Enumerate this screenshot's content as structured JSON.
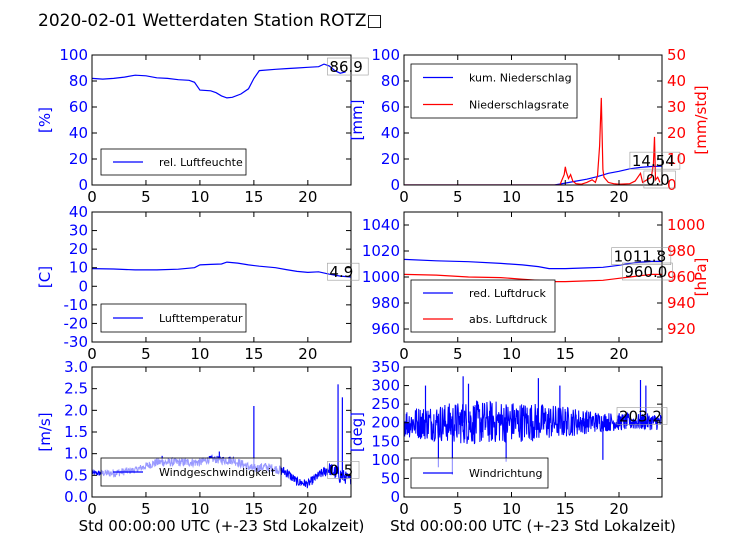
{
  "title": "2020-02-01 Wetterdaten Station ROTZ□",
  "colors": {
    "blue": "#0000ff",
    "red": "#ff0000",
    "black": "#000000"
  },
  "chart_data": [
    {
      "id": "humidity",
      "type": "line",
      "xlim": [
        0,
        24
      ],
      "ylim": [
        0,
        100
      ],
      "xticks": [
        0,
        5,
        10,
        15,
        20
      ],
      "yticks": [
        0,
        20,
        40,
        60,
        80,
        100
      ],
      "ylabel": "[%]",
      "xlabel": "",
      "legend_position": "lower-center",
      "series": [
        {
          "name": "rel. Luftfeuchte",
          "color": "#0000ff",
          "points": [
            [
              0,
              82
            ],
            [
              1,
              81.5
            ],
            [
              2,
              82
            ],
            [
              3,
              83
            ],
            [
              4,
              84.5
            ],
            [
              5,
              84
            ],
            [
              6,
              82.5
            ],
            [
              7,
              82
            ],
            [
              8,
              81
            ],
            [
              9,
              80.5
            ],
            [
              9.5,
              79
            ],
            [
              10,
              73
            ],
            [
              11,
              72.5
            ],
            [
              11.5,
              71
            ],
            [
              12,
              68.5
            ],
            [
              12.5,
              67
            ],
            [
              13,
              67.5
            ],
            [
              13.8,
              70
            ],
            [
              14.5,
              74
            ],
            [
              15,
              82
            ],
            [
              15.5,
              88
            ],
            [
              17,
              89
            ],
            [
              18,
              89.5
            ],
            [
              19,
              90
            ],
            [
              20,
              90.5
            ],
            [
              21,
              91
            ],
            [
              21.5,
              93
            ],
            [
              22,
              91.5
            ],
            [
              22.5,
              88
            ],
            [
              23,
              86
            ],
            [
              23.5,
              87
            ]
          ]
        }
      ],
      "annotations": [
        {
          "text": "86.9",
          "x": 22,
          "y": 86.9
        }
      ]
    },
    {
      "id": "precip",
      "type": "line",
      "xlim": [
        0,
        24
      ],
      "ylim": [
        0,
        100
      ],
      "y2lim": [
        0,
        50
      ],
      "xticks": [
        0,
        5,
        10,
        15,
        20
      ],
      "yticks": [
        0,
        20,
        40,
        60,
        80,
        100
      ],
      "y2ticks": [
        0,
        10,
        20,
        30,
        40,
        50
      ],
      "ylabel": "[mm]",
      "y2label": "[mm/std]",
      "xlabel": "",
      "legend_position": "upper-left",
      "series": [
        {
          "name": "kum. Niederschlag",
          "axis": "left",
          "color": "#0000ff",
          "points": [
            [
              0,
              0
            ],
            [
              14,
              0
            ],
            [
              15,
              1.5
            ],
            [
              16,
              3
            ],
            [
              17,
              4.5
            ],
            [
              18,
              6.5
            ],
            [
              19,
              9
            ],
            [
              20,
              10.5
            ],
            [
              21,
              12.5
            ],
            [
              22,
              13.5
            ],
            [
              23,
              14.2
            ],
            [
              24,
              14.5
            ]
          ]
        },
        {
          "name": "Niederschlagsrate",
          "axis": "right",
          "color": "#ff0000",
          "points": [
            [
              0,
              0
            ],
            [
              14.5,
              0
            ],
            [
              14.7,
              2
            ],
            [
              14.9,
              4
            ],
            [
              15,
              7
            ],
            [
              15.1,
              5
            ],
            [
              15.3,
              2.5
            ],
            [
              15.5,
              4
            ],
            [
              15.7,
              1.5
            ],
            [
              16,
              0.5
            ],
            [
              16.5,
              0.3
            ],
            [
              17,
              1
            ],
            [
              17.5,
              2
            ],
            [
              17.8,
              1
            ],
            [
              18,
              3.5
            ],
            [
              18.2,
              15
            ],
            [
              18.35,
              33.5
            ],
            [
              18.5,
              6
            ],
            [
              18.6,
              3
            ],
            [
              19,
              1
            ],
            [
              19.5,
              0.5
            ],
            [
              20,
              0.3
            ],
            [
              21,
              0.5
            ],
            [
              21.5,
              1.5
            ],
            [
              22,
              4.5
            ],
            [
              22.2,
              1
            ],
            [
              22.6,
              2
            ],
            [
              23,
              3
            ],
            [
              23.2,
              8
            ],
            [
              23.3,
              18.5
            ],
            [
              23.4,
              2
            ],
            [
              23.6,
              3
            ],
            [
              23.8,
              1
            ]
          ]
        }
      ],
      "annotations": [
        {
          "text": "14.54",
          "x": 21.2,
          "y": 14.5
        },
        {
          "text": "0.0",
          "x": 22.5,
          "y": 0.0
        }
      ]
    },
    {
      "id": "temperature",
      "type": "line",
      "xlim": [
        0,
        24
      ],
      "ylim": [
        -30,
        40
      ],
      "xticks": [
        0,
        5,
        10,
        15,
        20
      ],
      "yticks": [
        -30,
        -20,
        -10,
        0,
        10,
        20,
        30,
        40
      ],
      "ylabel": "[C]",
      "xlabel": "",
      "legend_position": "lower-center",
      "series": [
        {
          "name": "Lufttemperatur",
          "color": "#0000ff",
          "points": [
            [
              0,
              9.5
            ],
            [
              2,
              9.3
            ],
            [
              4,
              8.8
            ],
            [
              6,
              8.8
            ],
            [
              8,
              9.2
            ],
            [
              9.5,
              10
            ],
            [
              10,
              11.5
            ],
            [
              11,
              11.8
            ],
            [
              12,
              12
            ],
            [
              12.5,
              13
            ],
            [
              13.5,
              12.5
            ],
            [
              14.5,
              11.5
            ],
            [
              15.5,
              10.8
            ],
            [
              17,
              10
            ],
            [
              18,
              9
            ],
            [
              19,
              8
            ],
            [
              20,
              7.5
            ],
            [
              21,
              7.8
            ],
            [
              22,
              6.5
            ],
            [
              23,
              5.5
            ],
            [
              24,
              5
            ]
          ]
        }
      ],
      "annotations": [
        {
          "text": "4.9",
          "x": 22,
          "y": 4.9
        }
      ]
    },
    {
      "id": "pressure",
      "type": "line",
      "xlim": [
        0,
        24
      ],
      "ylim": [
        950,
        1050
      ],
      "y2lim": [
        910,
        1010
      ],
      "xticks": [
        0,
        5,
        10,
        15,
        20
      ],
      "yticks": [
        960,
        980,
        1000,
        1020,
        1040
      ],
      "y2ticks": [
        920,
        940,
        960,
        980,
        1000
      ],
      "ylabel": "",
      "y2label": "[hPa]",
      "xlabel": "",
      "legend_position": "lower-left",
      "series": [
        {
          "name": "red. Luftdruck",
          "color": "#0000ff",
          "points": [
            [
              0,
              1013.5
            ],
            [
              3,
              1012.5
            ],
            [
              6,
              1011.8
            ],
            [
              9,
              1010.5
            ],
            [
              11,
              1009.3
            ],
            [
              12.5,
              1008
            ],
            [
              13.5,
              1006.5
            ],
            [
              15,
              1006.5
            ],
            [
              17,
              1007
            ],
            [
              18.5,
              1007.5
            ],
            [
              20,
              1009
            ],
            [
              21,
              1010.5
            ],
            [
              22,
              1011.5
            ],
            [
              23,
              1012
            ],
            [
              24,
              1012
            ]
          ]
        },
        {
          "name": "abs. Luftdruck",
          "color": "#ff0000",
          "points": [
            [
              0,
              1002
            ],
            [
              3,
              1001.5
            ],
            [
              6,
              1000
            ],
            [
              9,
              999.5
            ],
            [
              11,
              998.3
            ],
            [
              12.5,
              997.5
            ],
            [
              13.5,
              996.5
            ],
            [
              15,
              996.5
            ],
            [
              17,
              997
            ],
            [
              18.5,
              997.5
            ],
            [
              20,
              999
            ],
            [
              21,
              1000
            ],
            [
              22,
              1001
            ],
            [
              23,
              1002
            ],
            [
              24,
              1002
            ]
          ]
        }
      ],
      "annotations": [
        {
          "text": "1011.8",
          "x": 19.5,
          "y": 1011.8
        },
        {
          "text": "960.0",
          "x": 20.5,
          "y": 1000
        }
      ]
    },
    {
      "id": "wind_speed",
      "type": "line",
      "xlim": [
        0,
        24
      ],
      "ylim": [
        0,
        3
      ],
      "xticks": [
        0,
        5,
        10,
        15,
        20
      ],
      "yticks": [
        0,
        0.5,
        1.0,
        1.5,
        2.0,
        2.5,
        3.0
      ],
      "ytick_labels": [
        "0.0",
        "0.5",
        "1.0",
        "1.5",
        "2.0",
        "2.5",
        "3.0"
      ],
      "ylabel": "[m/s]",
      "xlabel": "Std 00:00:00 UTC (+-23 Std Lokalzeit)",
      "legend_position": "lower-center",
      "noisy": true,
      "series": [
        {
          "name": "Windgeschwindigkeit",
          "color": "#0000ff",
          "envelope": [
            [
              0,
              0.5,
              0.6
            ],
            [
              2,
              0.45,
              0.65
            ],
            [
              4,
              0.55,
              0.7
            ],
            [
              6,
              0.7,
              0.9
            ],
            [
              8,
              0.7,
              0.9
            ],
            [
              10,
              0.7,
              0.9
            ],
            [
              11,
              0.8,
              0.95
            ],
            [
              12,
              0.75,
              0.95
            ],
            [
              13,
              0.75,
              0.95
            ],
            [
              14,
              0.65,
              0.85
            ],
            [
              15,
              0.55,
              0.75
            ],
            [
              16,
              0.6,
              0.8
            ],
            [
              17,
              0.55,
              0.75
            ],
            [
              18,
              0.45,
              0.7
            ],
            [
              19,
              0.25,
              0.45
            ],
            [
              20,
              0.2,
              0.4
            ],
            [
              21,
              0.4,
              0.6
            ],
            [
              22,
              0.5,
              0.8
            ],
            [
              23,
              0.3,
              0.7
            ],
            [
              24,
              0.3,
              0.5
            ]
          ],
          "spikes": [
            [
              15,
              2.1
            ],
            [
              22.8,
              2.6
            ],
            [
              23.2,
              2.3
            ],
            [
              6.5,
              0.95
            ],
            [
              11.8,
              1.05
            ]
          ]
        }
      ],
      "annotations": [
        {
          "text": "0.5",
          "x": 22,
          "y": 0.5
        }
      ]
    },
    {
      "id": "wind_direction",
      "type": "line",
      "xlim": [
        0,
        24
      ],
      "ylim": [
        0,
        350
      ],
      "xticks": [
        0,
        5,
        10,
        15,
        20
      ],
      "yticks": [
        0,
        50,
        100,
        150,
        200,
        250,
        300,
        350
      ],
      "ylabel": "[deg]",
      "xlabel": "Std 00:00:00 UTC (+-23 Std Lokalzeit)",
      "legend_position": "lower-left",
      "noisy": true,
      "series": [
        {
          "name": "Windrichtung",
          "color": "#0000ff",
          "envelope": [
            [
              0,
              160,
              240
            ],
            [
              3,
              150,
              250
            ],
            [
              6,
              140,
              260
            ],
            [
              9,
              145,
              260
            ],
            [
              12,
              150,
              255
            ],
            [
              15,
              160,
              245
            ],
            [
              18,
              175,
              230
            ],
            [
              21,
              180,
              225
            ],
            [
              24,
              180,
              225
            ]
          ],
          "spikes": [
            [
              2,
              300
            ],
            [
              5.5,
              325
            ],
            [
              6,
              305
            ],
            [
              12.5,
              320
            ],
            [
              14.5,
              300
            ],
            [
              22,
              315
            ],
            [
              22.5,
              300
            ],
            [
              3.2,
              80
            ],
            [
              4.5,
              60
            ],
            [
              9.5,
              95
            ],
            [
              18.5,
              100
            ]
          ]
        }
      ],
      "annotations": [
        {
          "text": "203.2",
          "x": 20,
          "y": 203.2
        }
      ]
    }
  ]
}
